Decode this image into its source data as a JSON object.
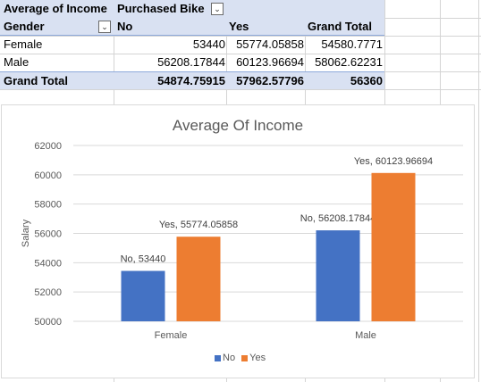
{
  "pivot": {
    "corner_label": "Average of Income",
    "column_field": "Purchased Bike",
    "row_field": "Gender",
    "col_headers": [
      "No",
      "Yes",
      "Grand Total"
    ],
    "rows": [
      {
        "label": "Female",
        "values": [
          "53440",
          "55774.05858",
          "54580.7771"
        ]
      },
      {
        "label": "Male",
        "values": [
          "56208.17844",
          "60123.96694",
          "58062.62231"
        ]
      }
    ],
    "grand_total": {
      "label": "Grand Total",
      "values": [
        "54874.75915",
        "57962.57796",
        "56360"
      ]
    },
    "header_fill": "#d9e1f2"
  },
  "chart_data": {
    "type": "bar",
    "title": "Average Of Income",
    "ylabel": "Salary",
    "xlabel": "",
    "categories": [
      "Female",
      "Male"
    ],
    "series": [
      {
        "name": "No",
        "values": [
          53440,
          56208.17844
        ],
        "color": "#4472c4",
        "labels": [
          "No, 53440",
          "No, 56208.17844"
        ]
      },
      {
        "name": "Yes",
        "values": [
          55774.05858,
          60123.96694
        ],
        "color": "#ed7d31",
        "labels": [
          "Yes, 55774.05858",
          "Yes, 60123.96694"
        ]
      }
    ],
    "ylim": [
      50000,
      62000
    ],
    "yticks": [
      50000,
      52000,
      54000,
      56000,
      58000,
      60000,
      62000
    ],
    "grid": true,
    "legend_position": "bottom"
  }
}
